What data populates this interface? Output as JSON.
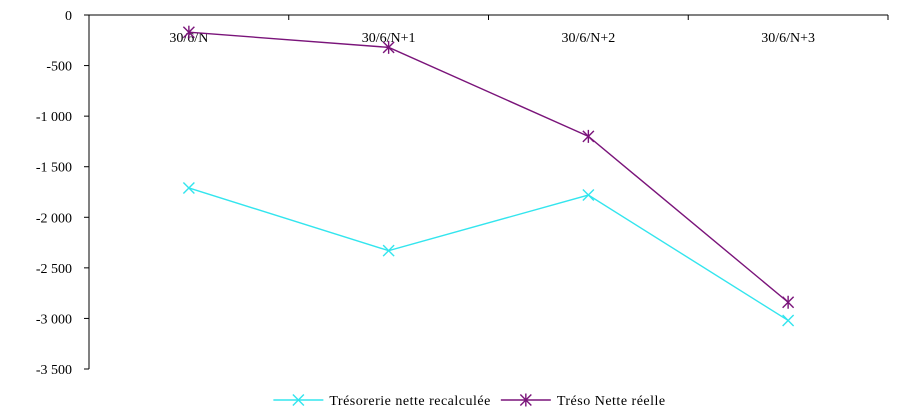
{
  "chart_data": {
    "type": "line",
    "categories": [
      "30/6/N",
      "30/6/N+1",
      "30/6/N+2",
      "30/6/N+3"
    ],
    "y_ticks": [
      {
        "value": 0,
        "label": "0"
      },
      {
        "value": -500,
        "label": "-500"
      },
      {
        "value": -1000,
        "label": "-1 000"
      },
      {
        "value": -1500,
        "label": "-1 500"
      },
      {
        "value": -2000,
        "label": "-2 000"
      },
      {
        "value": -2500,
        "label": "-2 500"
      },
      {
        "value": -3000,
        "label": "-3 000"
      },
      {
        "value": -3500,
        "label": "-3 500"
      }
    ],
    "ylim": [
      -3500,
      0
    ],
    "x_axis_position": "top",
    "grid": false,
    "legend_position": "bottom",
    "series": [
      {
        "name": "Trésorerie nette recalculée",
        "values": [
          -1710,
          -2330,
          -1780,
          -3020
        ],
        "color": "#33e5ee",
        "marker": "x"
      },
      {
        "name": "Tréso Nette réelle",
        "values": [
          -170,
          -320,
          -1200,
          -2840
        ],
        "color": "#7a147a",
        "marker": "star"
      }
    ]
  }
}
